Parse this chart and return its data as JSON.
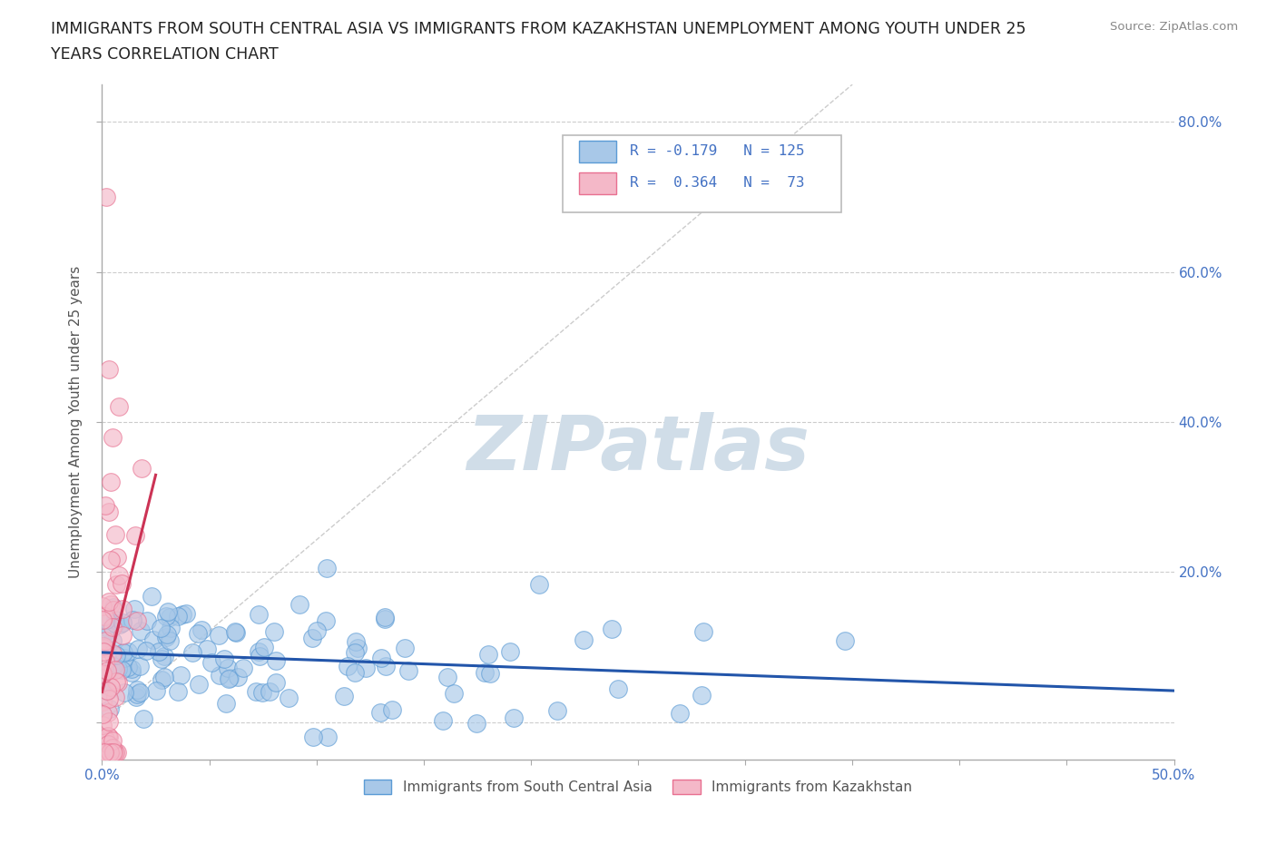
{
  "title_line1": "IMMIGRANTS FROM SOUTH CENTRAL ASIA VS IMMIGRANTS FROM KAZAKHSTAN UNEMPLOYMENT AMONG YOUTH UNDER 25",
  "title_line2": "YEARS CORRELATION CHART",
  "source_text": "Source: ZipAtlas.com",
  "watermark": "ZIPatlas",
  "ylabel": "Unemployment Among Youth under 25 years",
  "xlim": [
    0.0,
    0.5
  ],
  "ylim": [
    -0.05,
    0.85
  ],
  "ytick_positions": [
    0.0,
    0.2,
    0.4,
    0.6,
    0.8
  ],
  "ytick_labels": [
    "",
    "20.0%",
    "40.0%",
    "60.0%",
    "80.0%"
  ],
  "xtick_positions": [
    0.0,
    0.05,
    0.1,
    0.15,
    0.2,
    0.25,
    0.3,
    0.35,
    0.4,
    0.45,
    0.5
  ],
  "xtick_labels": [
    "0.0%",
    "",
    "",
    "",
    "",
    "",
    "",
    "",
    "",
    "",
    "50.0%"
  ],
  "series1_color": "#a8c8e8",
  "series1_edge": "#5b9bd5",
  "series2_color": "#f4b8c8",
  "series2_edge": "#e87090",
  "trend1_color": "#2255aa",
  "trend2_color": "#cc3355",
  "R1": -0.179,
  "N1": 125,
  "R2": 0.364,
  "N2": 73,
  "legend1_label": "Immigrants from South Central Asia",
  "legend2_label": "Immigrants from Kazakhstan",
  "grid_color": "#cccccc",
  "background_color": "#ffffff",
  "title_color": "#222222",
  "watermark_color": "#d0dde8",
  "axis_label_color": "#555555",
  "tick_label_color": "#4472c4",
  "seed": 42
}
